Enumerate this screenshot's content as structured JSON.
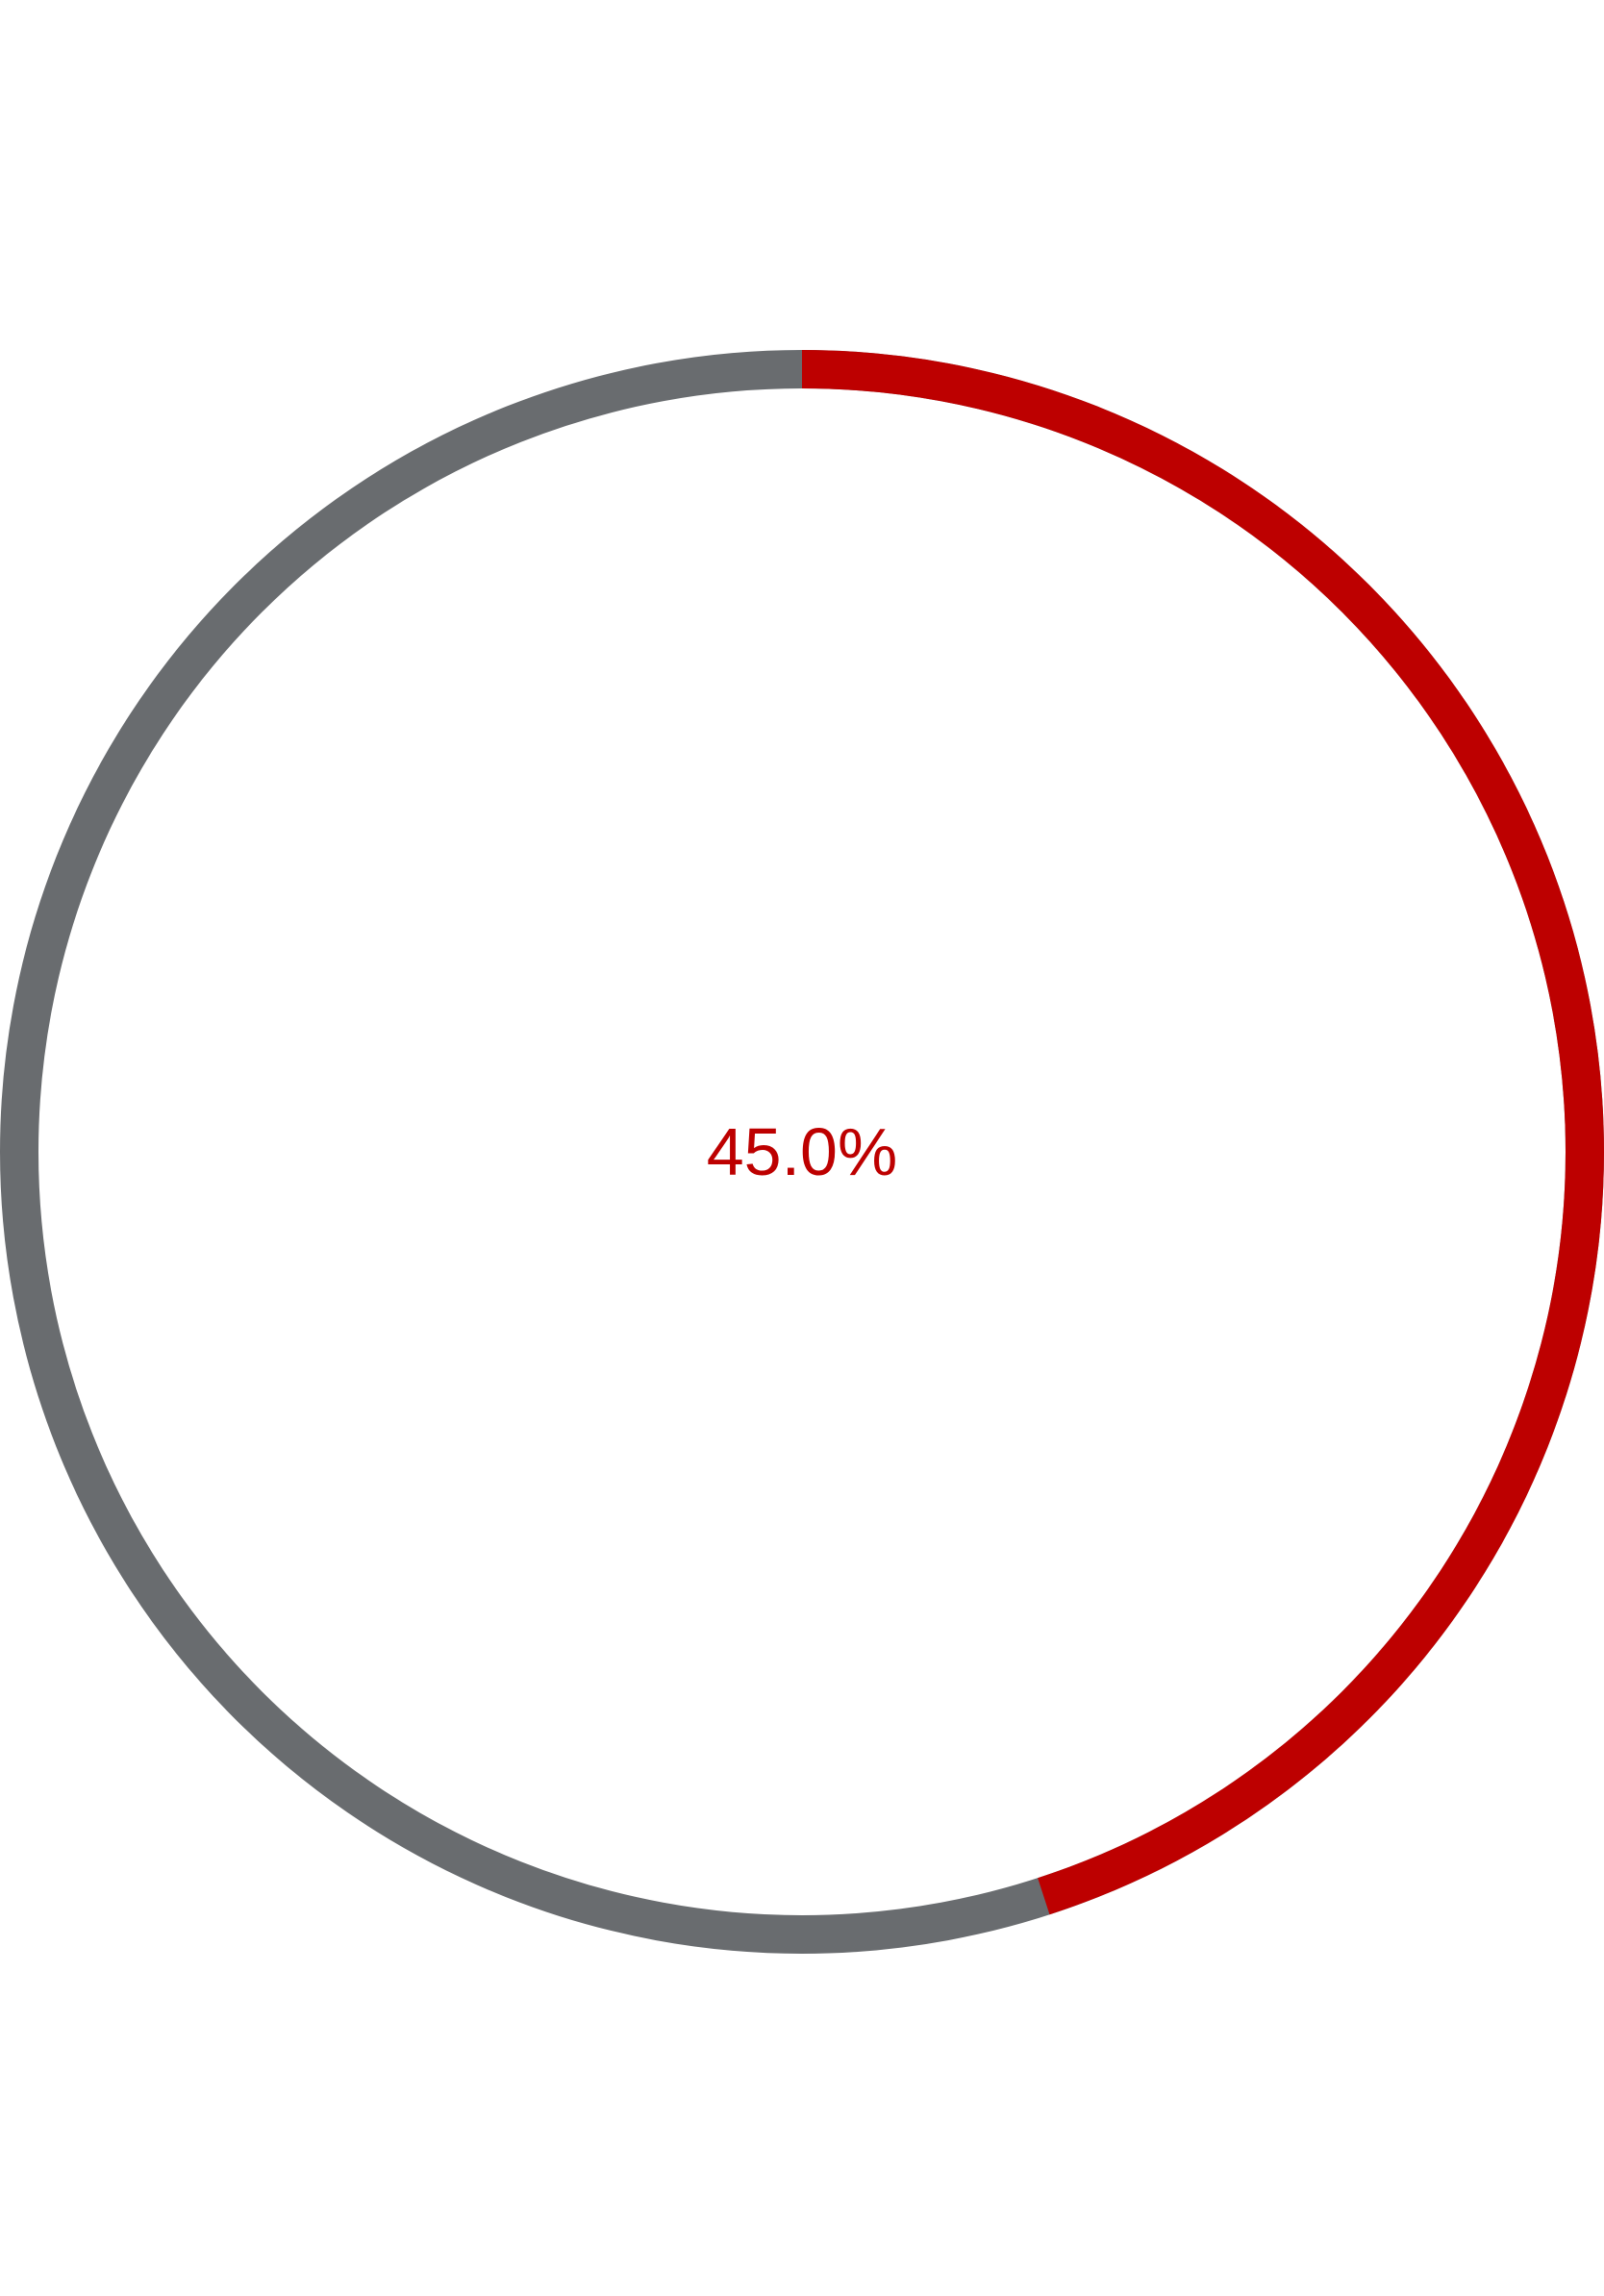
{
  "progress_ring": {
    "fraction": 0.45,
    "label": "45.0%",
    "colors": {
      "progress": "#bd0000",
      "track": "#696c6f",
      "background": "#ffffff",
      "label": "#bd0000"
    }
  }
}
